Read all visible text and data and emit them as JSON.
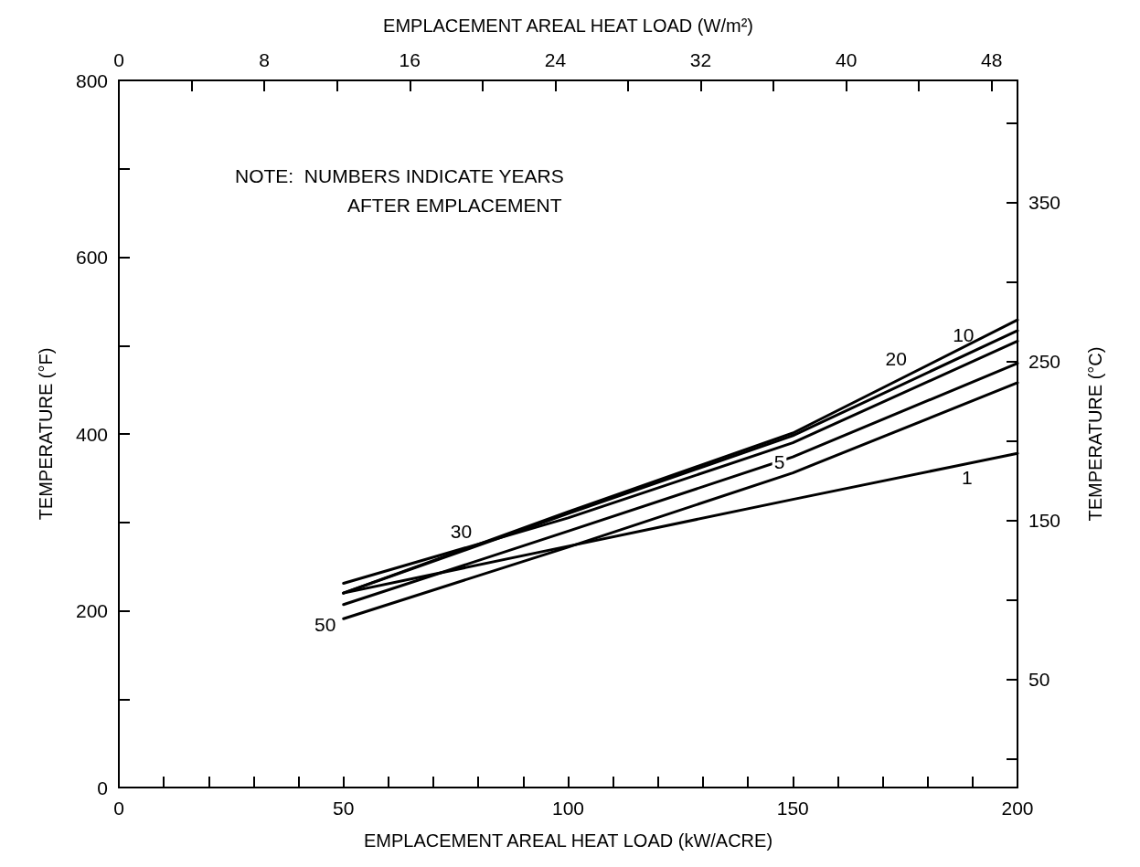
{
  "chart_data": {
    "type": "line",
    "xlabel": "EMPLACEMENT AREAL HEAT LOAD (kW/ACRE)",
    "ylabel": "TEMPERATURE (°F)",
    "y2label": "TEMPERATURE (°C)",
    "x2label": "EMPLACEMENT AREAL HEAT LOAD (W/m²)",
    "annotations": [
      "NOTE:  NUMBERS INDICATE YEARS\nAFTER EMPLACEMENT"
    ],
    "x": [
      50,
      100,
      150,
      200
    ],
    "series": [
      {
        "name": "1",
        "color": "#000000",
        "values": [
          220,
          273,
          326,
          378
        ]
      },
      {
        "name": "5",
        "color": "#000000",
        "values": [
          207,
          290,
          374,
          480
        ]
      },
      {
        "name": "10",
        "color": "#000000",
        "values": [
          220,
          310,
          398,
          517
        ]
      },
      {
        "name": "20",
        "color": "#000000",
        "values": [
          220,
          312,
          401,
          529
        ]
      },
      {
        "name": "30",
        "color": "#000000",
        "values": [
          231,
          305,
          390,
          505
        ]
      },
      {
        "name": "50",
        "color": "#000000",
        "values": [
          191,
          272,
          356,
          458
        ]
      }
    ],
    "xlim": [
      0,
      200
    ],
    "xticks": [
      0,
      {
        "value": 10,
        "label": null
      },
      {
        "value": 20,
        "label": null
      },
      {
        "value": 30,
        "label": null
      },
      {
        "value": 40,
        "label": null
      },
      50,
      {
        "value": 60,
        "label": null
      },
      {
        "value": 70,
        "label": null
      },
      {
        "value": 80,
        "label": null
      },
      {
        "value": 90,
        "label": null
      },
      100,
      {
        "value": 110,
        "label": null
      },
      {
        "value": 120,
        "label": null
      },
      {
        "value": 130,
        "label": null
      },
      {
        "value": 140,
        "label": null
      },
      150,
      {
        "value": 160,
        "label": null
      },
      {
        "value": 170,
        "label": null
      },
      {
        "value": 180,
        "label": null
      },
      {
        "value": 190,
        "label": null
      },
      200
    ],
    "ylim": [
      0,
      800
    ],
    "yticks": [
      0,
      {
        "value": 100,
        "label": null
      },
      200,
      {
        "value": 300,
        "label": null
      },
      400,
      {
        "value": 500,
        "label": null
      },
      600,
      {
        "value": 700,
        "label": null
      },
      800
    ],
    "x2lim": [
      0,
      49.42
    ],
    "x2ticks": [
      0,
      {
        "value": 4,
        "label": null
      },
      8,
      {
        "value": 12,
        "label": null
      },
      16,
      {
        "value": 20,
        "label": null
      },
      24,
      {
        "value": 28,
        "label": null
      },
      32,
      {
        "value": 36,
        "label": null
      },
      40,
      {
        "value": 44,
        "label": null
      },
      48
    ],
    "y2lim": [
      -17.78,
      426.67
    ],
    "y2ticks": [
      {
        "value": 0,
        "label": null
      },
      50,
      {
        "value": 100,
        "label": null
      },
      150,
      {
        "value": 200,
        "label": null
      },
      250,
      {
        "value": 300,
        "label": null
      },
      350,
      {
        "value": 400,
        "label": null
      }
    ],
    "grid": false,
    "legend": false,
    "marker": "none",
    "line_style": "solid"
  }
}
